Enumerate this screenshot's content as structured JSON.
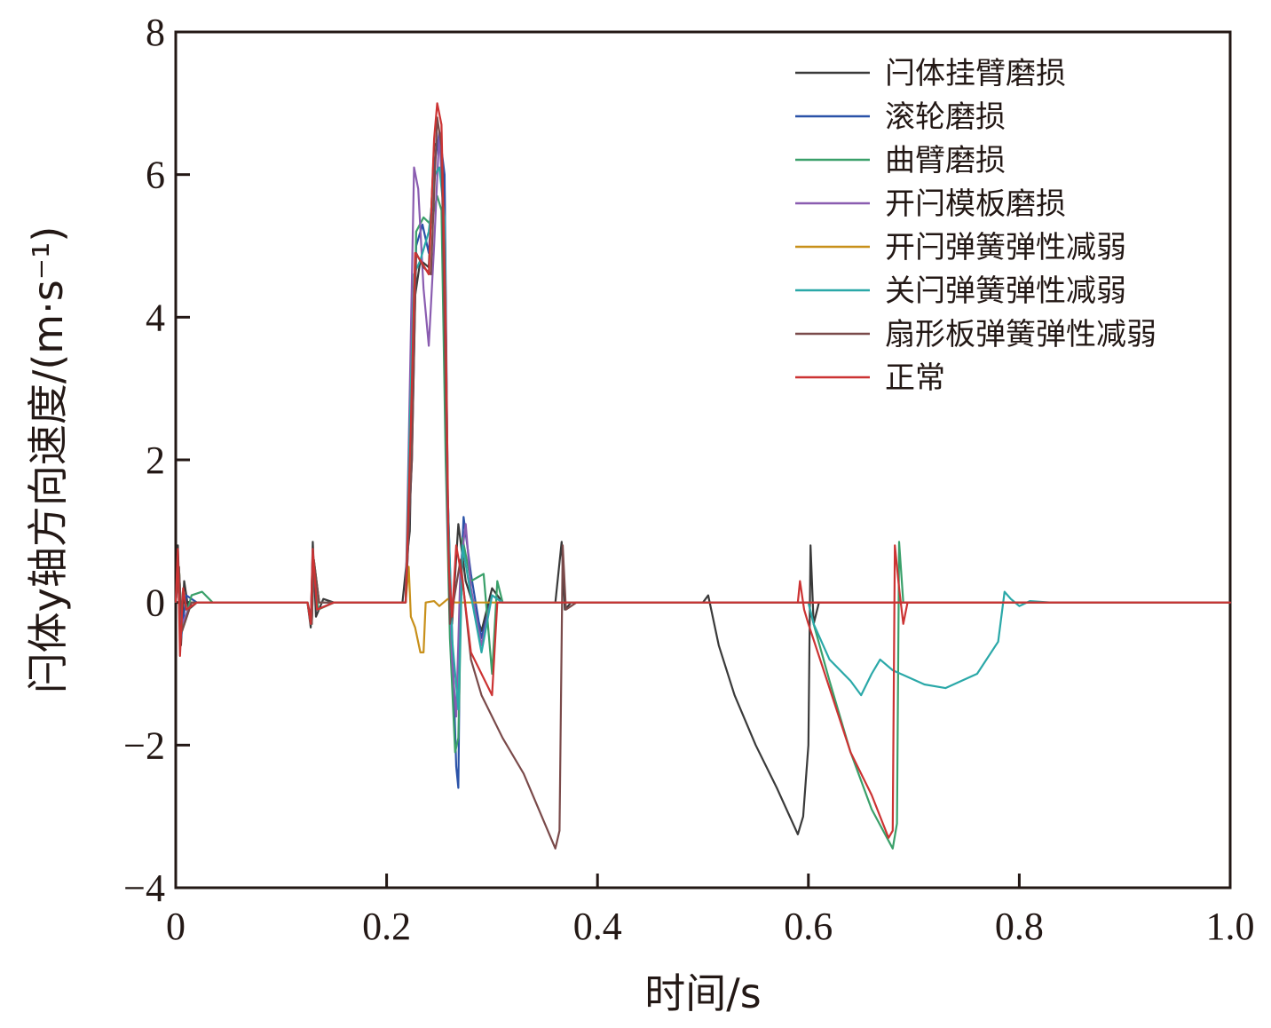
{
  "chart_data": {
    "type": "line",
    "xlabel": "时间/s",
    "ylabel": "闩体y轴方向速度/(m·s⁻¹)",
    "xlim": [
      0,
      1.0
    ],
    "ylim": [
      -4,
      8
    ],
    "xticks": [
      0,
      0.2,
      0.4,
      0.6,
      0.8,
      1.0
    ],
    "xtick_labels": [
      "0",
      "0.2",
      "0.4",
      "0.6",
      "0.8",
      "1.0"
    ],
    "yticks": [
      -4,
      -2,
      0,
      2,
      4,
      6,
      8
    ],
    "ytick_labels": [
      "−4",
      "−2",
      "0",
      "2",
      "4",
      "6",
      "8"
    ],
    "grid": false,
    "legend_position": "top-right",
    "series": [
      {
        "name": "闩体挂臂磨损",
        "color": "#3a3a3a",
        "points": [
          [
            0,
            0
          ],
          [
            0.002,
            0.8
          ],
          [
            0.005,
            -0.6
          ],
          [
            0.008,
            0.3
          ],
          [
            0.012,
            -0.1
          ],
          [
            0.02,
            0
          ],
          [
            0.125,
            0
          ],
          [
            0.128,
            -0.35
          ],
          [
            0.13,
            0.85
          ],
          [
            0.133,
            -0.2
          ],
          [
            0.14,
            0.05
          ],
          [
            0.15,
            0
          ],
          [
            0.215,
            0
          ],
          [
            0.222,
            1.0
          ],
          [
            0.226,
            4.2
          ],
          [
            0.232,
            4.8
          ],
          [
            0.24,
            4.7
          ],
          [
            0.245,
            6.4
          ],
          [
            0.25,
            6.5
          ],
          [
            0.255,
            5.8
          ],
          [
            0.258,
            1.0
          ],
          [
            0.262,
            -0.3
          ],
          [
            0.268,
            1.1
          ],
          [
            0.275,
            0.3
          ],
          [
            0.29,
            -0.4
          ],
          [
            0.3,
            0.2
          ],
          [
            0.31,
            0
          ],
          [
            0.36,
            0
          ],
          [
            0.366,
            0.85
          ],
          [
            0.369,
            -0.1
          ],
          [
            0.375,
            0
          ],
          [
            0.5,
            0
          ],
          [
            0.505,
            0.1
          ],
          [
            0.515,
            -0.6
          ],
          [
            0.53,
            -1.3
          ],
          [
            0.55,
            -2.0
          ],
          [
            0.57,
            -2.6
          ],
          [
            0.59,
            -3.25
          ],
          [
            0.595,
            -3.0
          ],
          [
            0.6,
            -2.0
          ],
          [
            0.602,
            0.8
          ],
          [
            0.605,
            -0.3
          ],
          [
            0.61,
            0
          ],
          [
            1.0,
            0
          ]
        ]
      },
      {
        "name": "滚轮磨损",
        "color": "#2a52a8",
        "points": [
          [
            0,
            0
          ],
          [
            0.002,
            0.6
          ],
          [
            0.005,
            -0.5
          ],
          [
            0.01,
            0.1
          ],
          [
            0.02,
            0
          ],
          [
            0.125,
            0
          ],
          [
            0.128,
            -0.3
          ],
          [
            0.13,
            0.7
          ],
          [
            0.134,
            -0.1
          ],
          [
            0.15,
            0
          ],
          [
            0.218,
            0
          ],
          [
            0.224,
            2.0
          ],
          [
            0.228,
            5.0
          ],
          [
            0.234,
            5.3
          ],
          [
            0.24,
            4.9
          ],
          [
            0.246,
            6.2
          ],
          [
            0.25,
            6.6
          ],
          [
            0.255,
            6.0
          ],
          [
            0.258,
            1.5
          ],
          [
            0.262,
            -0.4
          ],
          [
            0.266,
            -2.3
          ],
          [
            0.268,
            -2.6
          ],
          [
            0.27,
            0.2
          ],
          [
            0.273,
            1.2
          ],
          [
            0.28,
            0.4
          ],
          [
            0.29,
            -0.5
          ],
          [
            0.3,
            0.1
          ],
          [
            0.31,
            0
          ],
          [
            1.0,
            0
          ]
        ]
      },
      {
        "name": "曲臂磨损",
        "color": "#3aa06a",
        "points": [
          [
            0,
            0
          ],
          [
            0.003,
            0.5
          ],
          [
            0.006,
            -0.4
          ],
          [
            0.015,
            0.1
          ],
          [
            0.025,
            0.15
          ],
          [
            0.035,
            0
          ],
          [
            0.125,
            0
          ],
          [
            0.128,
            -0.3
          ],
          [
            0.131,
            0.6
          ],
          [
            0.135,
            -0.1
          ],
          [
            0.15,
            0
          ],
          [
            0.218,
            0
          ],
          [
            0.224,
            2.2
          ],
          [
            0.228,
            5.2
          ],
          [
            0.235,
            5.4
          ],
          [
            0.242,
            5.3
          ],
          [
            0.248,
            5.7
          ],
          [
            0.252,
            5.5
          ],
          [
            0.256,
            2.0
          ],
          [
            0.26,
            -0.5
          ],
          [
            0.265,
            -2.1
          ],
          [
            0.268,
            -1.9
          ],
          [
            0.272,
            0.9
          ],
          [
            0.28,
            0.3
          ],
          [
            0.292,
            0.4
          ],
          [
            0.3,
            -1.0
          ],
          [
            0.305,
            0.3
          ],
          [
            0.31,
            0
          ],
          [
            0.6,
            0
          ],
          [
            0.605,
            -0.3
          ],
          [
            0.62,
            -1.1
          ],
          [
            0.64,
            -2.1
          ],
          [
            0.66,
            -2.9
          ],
          [
            0.68,
            -3.45
          ],
          [
            0.684,
            -3.1
          ],
          [
            0.686,
            0.85
          ],
          [
            0.69,
            0
          ],
          [
            1.0,
            0
          ]
        ]
      },
      {
        "name": "开闩模板磨损",
        "color": "#8a5cb0",
        "points": [
          [
            0,
            0
          ],
          [
            0.003,
            0.4
          ],
          [
            0.006,
            -0.3
          ],
          [
            0.015,
            0
          ],
          [
            0.125,
            0
          ],
          [
            0.129,
            -0.25
          ],
          [
            0.131,
            0.55
          ],
          [
            0.136,
            0
          ],
          [
            0.218,
            0
          ],
          [
            0.222,
            3.0
          ],
          [
            0.226,
            6.1
          ],
          [
            0.23,
            5.8
          ],
          [
            0.235,
            4.4
          ],
          [
            0.24,
            3.6
          ],
          [
            0.245,
            5.0
          ],
          [
            0.25,
            6.6
          ],
          [
            0.254,
            5.4
          ],
          [
            0.258,
            1.0
          ],
          [
            0.262,
            -0.8
          ],
          [
            0.266,
            -1.6
          ],
          [
            0.27,
            0.5
          ],
          [
            0.275,
            1.1
          ],
          [
            0.28,
            0.2
          ],
          [
            0.29,
            -0.6
          ],
          [
            0.3,
            0.1
          ],
          [
            0.31,
            0
          ],
          [
            1.0,
            0
          ]
        ]
      },
      {
        "name": "开闩弹簧弹性减弱",
        "color": "#c8901a",
        "points": [
          [
            0,
            0
          ],
          [
            0.003,
            0.5
          ],
          [
            0.006,
            -0.4
          ],
          [
            0.015,
            0
          ],
          [
            0.125,
            0
          ],
          [
            0.129,
            -0.3
          ],
          [
            0.131,
            0.6
          ],
          [
            0.136,
            0
          ],
          [
            0.218,
            0
          ],
          [
            0.221,
            0.5
          ],
          [
            0.223,
            -0.2
          ],
          [
            0.227,
            -0.35
          ],
          [
            0.232,
            -0.7
          ],
          [
            0.235,
            -0.7
          ],
          [
            0.237,
            0
          ],
          [
            0.245,
            0.02
          ],
          [
            0.25,
            -0.05
          ],
          [
            0.258,
            0.05
          ],
          [
            0.265,
            0
          ],
          [
            1.0,
            0
          ]
        ]
      },
      {
        "name": "关闩弹簧弹性减弱",
        "color": "#2aa8a8",
        "points": [
          [
            0,
            0
          ],
          [
            0.003,
            0.5
          ],
          [
            0.006,
            -0.4
          ],
          [
            0.015,
            0
          ],
          [
            0.125,
            0
          ],
          [
            0.129,
            -0.3
          ],
          [
            0.131,
            0.6
          ],
          [
            0.136,
            0
          ],
          [
            0.218,
            0
          ],
          [
            0.222,
            2.5
          ],
          [
            0.226,
            4.6
          ],
          [
            0.232,
            4.8
          ],
          [
            0.24,
            5.2
          ],
          [
            0.246,
            6.0
          ],
          [
            0.25,
            6.1
          ],
          [
            0.255,
            5.4
          ],
          [
            0.258,
            1.5
          ],
          [
            0.262,
            -0.5
          ],
          [
            0.268,
            -1.5
          ],
          [
            0.272,
            0.8
          ],
          [
            0.28,
            0.1
          ],
          [
            0.29,
            -0.7
          ],
          [
            0.3,
            0.1
          ],
          [
            0.31,
            0
          ],
          [
            0.6,
            0
          ],
          [
            0.605,
            -0.3
          ],
          [
            0.62,
            -0.8
          ],
          [
            0.64,
            -1.1
          ],
          [
            0.65,
            -1.3
          ],
          [
            0.66,
            -1.0
          ],
          [
            0.668,
            -0.8
          ],
          [
            0.68,
            -0.95
          ],
          [
            0.71,
            -1.15
          ],
          [
            0.73,
            -1.2
          ],
          [
            0.76,
            -1.0
          ],
          [
            0.78,
            -0.55
          ],
          [
            0.786,
            0.15
          ],
          [
            0.792,
            0.05
          ],
          [
            0.8,
            -0.05
          ],
          [
            0.81,
            0.02
          ],
          [
            0.83,
            0
          ],
          [
            1.0,
            0
          ]
        ]
      },
      {
        "name": "扇形板弹簧弹性减弱",
        "color": "#7a4a4a",
        "points": [
          [
            0,
            0
          ],
          [
            0.003,
            0.5
          ],
          [
            0.006,
            -0.4
          ],
          [
            0.015,
            0
          ],
          [
            0.125,
            0
          ],
          [
            0.129,
            -0.3
          ],
          [
            0.131,
            0.6
          ],
          [
            0.136,
            0
          ],
          [
            0.218,
            0
          ],
          [
            0.224,
            2.0
          ],
          [
            0.228,
            4.9
          ],
          [
            0.235,
            4.7
          ],
          [
            0.242,
            4.6
          ],
          [
            0.248,
            6.8
          ],
          [
            0.252,
            6.4
          ],
          [
            0.256,
            3.0
          ],
          [
            0.26,
            -0.3
          ],
          [
            0.27,
            0.6
          ],
          [
            0.28,
            -0.8
          ],
          [
            0.29,
            -1.3
          ],
          [
            0.31,
            -1.9
          ],
          [
            0.33,
            -2.4
          ],
          [
            0.35,
            -3.1
          ],
          [
            0.36,
            -3.45
          ],
          [
            0.364,
            -3.2
          ],
          [
            0.367,
            0.8
          ],
          [
            0.37,
            -0.1
          ],
          [
            0.38,
            0
          ],
          [
            1.0,
            0
          ]
        ]
      },
      {
        "name": "正常",
        "color": "#cc3333",
        "points": [
          [
            0,
            0
          ],
          [
            0.002,
            0.75
          ],
          [
            0.004,
            -0.75
          ],
          [
            0.007,
            0.2
          ],
          [
            0.01,
            -0.1
          ],
          [
            0.02,
            0
          ],
          [
            0.125,
            0
          ],
          [
            0.128,
            -0.3
          ],
          [
            0.13,
            0.75
          ],
          [
            0.134,
            -0.1
          ],
          [
            0.15,
            0
          ],
          [
            0.218,
            0
          ],
          [
            0.223,
            2.5
          ],
          [
            0.227,
            4.9
          ],
          [
            0.232,
            4.8
          ],
          [
            0.24,
            4.6
          ],
          [
            0.245,
            6.5
          ],
          [
            0.248,
            7.0
          ],
          [
            0.252,
            6.7
          ],
          [
            0.256,
            4.0
          ],
          [
            0.259,
            0.5
          ],
          [
            0.262,
            -0.2
          ],
          [
            0.266,
            0.8
          ],
          [
            0.272,
            0.3
          ],
          [
            0.28,
            -0.7
          ],
          [
            0.3,
            -1.3
          ],
          [
            0.305,
            0
          ],
          [
            1.0,
            0
          ],
          [
            0.59,
            0
          ],
          [
            0.592,
            0.3
          ],
          [
            0.596,
            -0.1
          ],
          [
            0.6,
            -0.3
          ],
          [
            0.62,
            -1.2
          ],
          [
            0.64,
            -2.1
          ],
          [
            0.66,
            -2.7
          ],
          [
            0.676,
            -3.3
          ],
          [
            0.68,
            -3.2
          ],
          [
            0.682,
            0.8
          ],
          [
            0.686,
            0.2
          ],
          [
            0.69,
            -0.3
          ],
          [
            0.694,
            0
          ],
          [
            1.0,
            0
          ]
        ]
      }
    ]
  }
}
